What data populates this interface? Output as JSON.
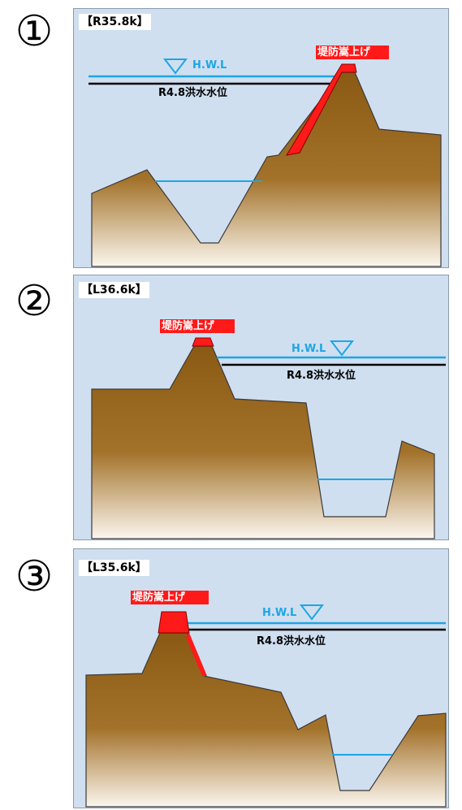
{
  "panels": [
    {
      "number": "①",
      "section_label": "【R35.8k】",
      "raise_label": "堤防嵩上げ",
      "hwl_label": "H.W.L",
      "flood_label": "R4.8洪水水位"
    },
    {
      "number": "②",
      "section_label": "【L36.6k】",
      "raise_label": "堤防嵩上げ",
      "hwl_label": "H.W.L",
      "flood_label": "R4.8洪水水位"
    },
    {
      "number": "③",
      "section_label": "【L35.6k】",
      "raise_label": "堤防嵩上げ",
      "hwl_label": "H.W.L",
      "flood_label": "R4.8洪水水位"
    }
  ],
  "colors": {
    "panel_bg": "#cfdff0",
    "ground_top": "#8a5a14",
    "ground_bottom": "#fbf6ee",
    "levee_raise": "#ff1a1a",
    "hwl_line": "#1ca6e6",
    "flood_line": "#000000",
    "river_water_line": "#1ca6e6"
  },
  "icons": {
    "hwl_marker": "inverted-triangle-icon"
  }
}
